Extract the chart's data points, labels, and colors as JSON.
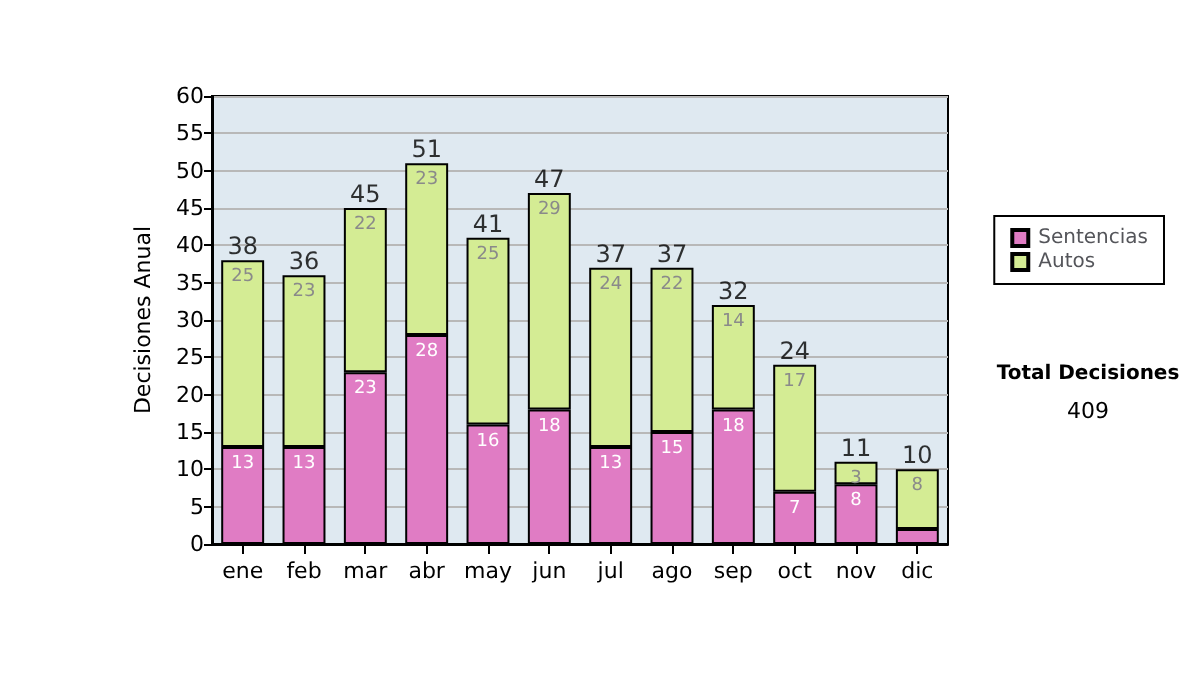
{
  "chart_data": {
    "type": "bar",
    "stacked": true,
    "ylabel": "Decisiones Anual",
    "categories": [
      "ene",
      "feb",
      "mar",
      "abr",
      "may",
      "jun",
      "jul",
      "ago",
      "sep",
      "oct",
      "nov",
      "dic"
    ],
    "series": [
      {
        "name": "Sentencias",
        "color": "#e07cc4",
        "values": [
          13,
          13,
          23,
          28,
          16,
          18,
          13,
          15,
          18,
          7,
          8,
          2
        ],
        "value_labels": [
          "13",
          "13",
          "23",
          "28",
          "16",
          "18",
          "13",
          "15",
          "18",
          "7",
          "8",
          null
        ]
      },
      {
        "name": "Autos",
        "color": "#d4ec94",
        "values": [
          25,
          23,
          22,
          23,
          25,
          29,
          24,
          22,
          14,
          17,
          3,
          8
        ],
        "value_labels": [
          "25",
          "23",
          "22",
          "23",
          "25",
          "29",
          "24",
          "22",
          "14",
          "17",
          "3",
          "8"
        ]
      }
    ],
    "totals": [
      "38",
      "36",
      "45",
      "51",
      "41",
      "47",
      "37",
      "37",
      "32",
      "24",
      "11",
      "10"
    ],
    "ylim": [
      0,
      60
    ],
    "yticks": [
      0,
      5,
      10,
      15,
      20,
      25,
      30,
      35,
      40,
      45,
      50,
      55,
      60
    ],
    "grid": "y",
    "legend": "right",
    "annotations": [
      "Total Decisiones",
      "409"
    ]
  }
}
